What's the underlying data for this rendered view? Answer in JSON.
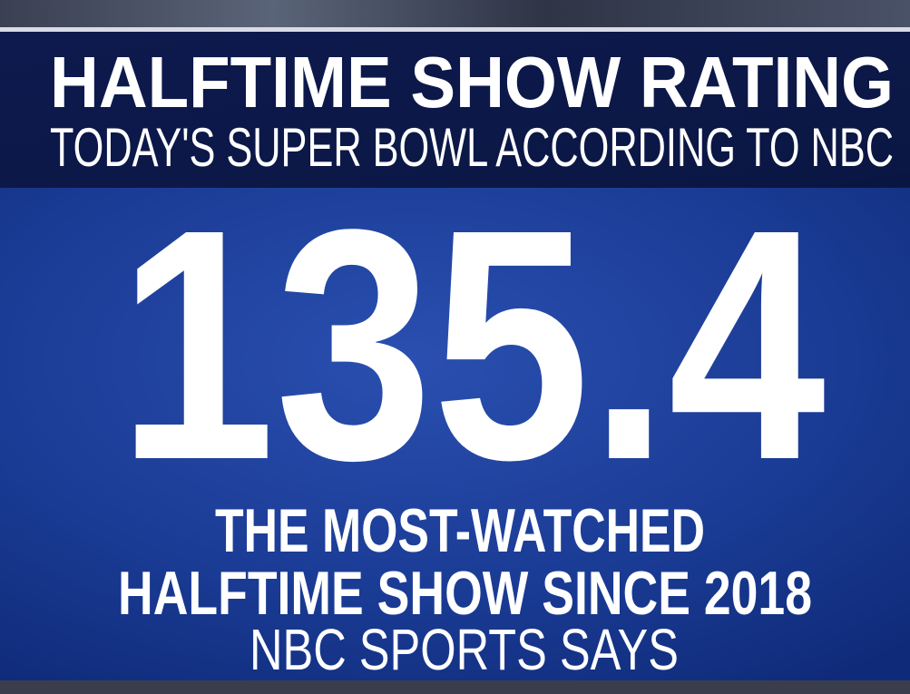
{
  "header": {
    "title": "HALFTIME SHOW RATING",
    "subtitle": "TODAY'S SUPER BOWL ACCORDING TO NBC"
  },
  "body": {
    "figure": "135.4",
    "lines": [
      "THE MOST-WATCHED",
      "HALFTIME SHOW SINCE 2018",
      "NBC SPORTS SAYS"
    ]
  }
}
